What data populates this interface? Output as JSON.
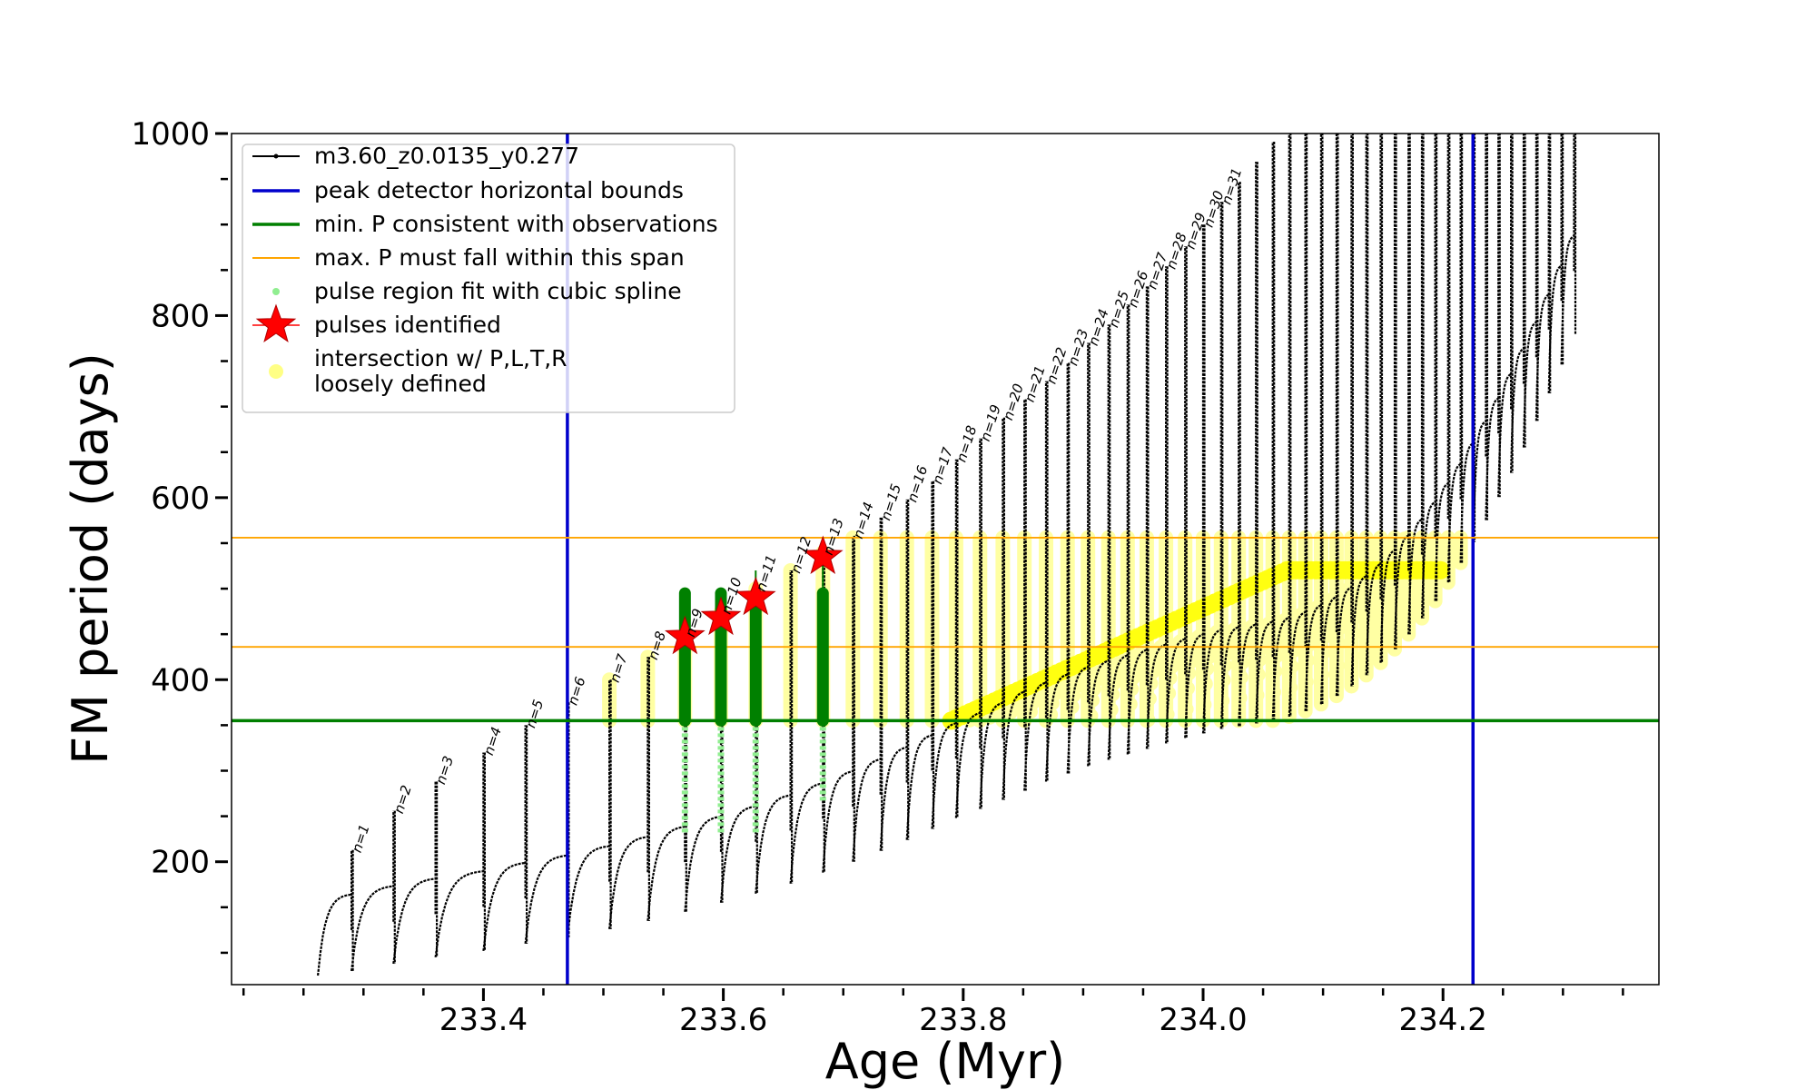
{
  "chart_data": {
    "type": "scatter",
    "title": "",
    "xlabel": "Age (Myr)",
    "ylabel": "FM period (days)",
    "xlim": [
      233.19,
      234.38
    ],
    "ylim": [
      65,
      1000
    ],
    "xticks": [
      233.4,
      233.6,
      233.8,
      234.0,
      234.2
    ],
    "xtick_labels": [
      "233.4",
      "233.6",
      "233.8",
      "234.0",
      "234.2"
    ],
    "yticks": [
      200,
      400,
      600,
      800,
      1000
    ],
    "ytick_labels": [
      "200",
      "400",
      "600",
      "800",
      "1000"
    ],
    "grid": false,
    "legend_placement": "top-left",
    "legend": [
      {
        "label": "m3.60_z0.0135_y0.277",
        "kind": "line-marker",
        "color": "#000000"
      },
      {
        "label": "peak detector horizontal bounds",
        "kind": "line",
        "color": "#0000cc"
      },
      {
        "label": "min. P consistent with observations",
        "kind": "line",
        "color": "#007f00"
      },
      {
        "label": "max. P must fall within this span",
        "kind": "line",
        "color": "#ffa500"
      },
      {
        "label": "pulse region fit with cubic spline",
        "kind": "dot",
        "color": "#90ee90"
      },
      {
        "label": "pulses identified",
        "kind": "star",
        "color": "#ff0000"
      },
      {
        "label": "intersection w/ P,L,T,R",
        "kind": "dot",
        "color": "#ffff33"
      },
      {
        "label": "loosely defined",
        "kind": "text",
        "color": "#000000"
      }
    ],
    "vertical_bounds": [
      233.47,
      234.225
    ],
    "min_period_line": 355,
    "max_period_span": [
      436,
      556
    ],
    "pulses": {
      "n": [
        1,
        2,
        3,
        4,
        5,
        6,
        7,
        8,
        9,
        10,
        11,
        12,
        13,
        14,
        15,
        16,
        17,
        18,
        19,
        20,
        21,
        22,
        23,
        24,
        25,
        26,
        27,
        28,
        29,
        30,
        31
      ],
      "age": [
        233.29,
        233.325,
        233.36,
        233.4,
        233.435,
        233.47,
        233.505,
        233.537,
        233.568,
        233.598,
        233.627,
        233.656,
        233.683,
        233.708,
        233.731,
        233.753,
        233.774,
        233.794,
        233.814,
        233.833,
        233.851,
        233.869,
        233.887,
        233.904,
        233.921,
        233.937,
        233.953,
        233.969,
        233.985,
        234.0,
        234.015
      ],
      "peak": [
        213,
        256,
        288,
        320,
        350,
        375,
        400,
        425,
        450,
        475,
        500,
        520,
        540,
        558,
        578,
        598,
        618,
        642,
        665,
        688,
        708,
        728,
        748,
        770,
        790,
        812,
        832,
        854,
        876,
        900,
        925
      ],
      "trough": [
        80,
        88,
        95,
        102,
        110,
        117,
        126,
        135,
        145,
        155,
        165,
        176,
        188,
        200,
        212,
        224,
        236,
        248,
        258,
        268,
        278,
        288,
        297,
        305,
        312,
        318,
        324,
        330,
        336,
        341,
        346
      ]
    },
    "pulses_identified": [
      {
        "n": 9,
        "age": 233.568,
        "period": 447
      },
      {
        "n": 10,
        "age": 233.598,
        "period": 468
      },
      {
        "n": 11,
        "age": 233.627,
        "period": 490
      },
      {
        "n": 13,
        "age": 233.683,
        "period": 535
      }
    ]
  }
}
